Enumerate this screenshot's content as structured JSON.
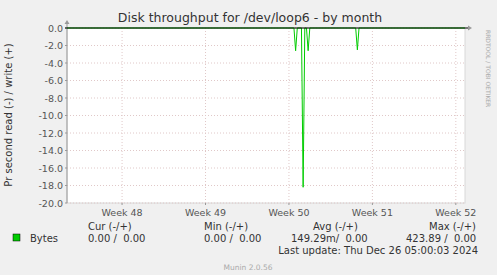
{
  "chart_data": {
    "type": "line",
    "title": "Disk throughput for /dev/loop6 - by month",
    "y_label": "Pr second read (-) / write (+)",
    "x": [
      47.34,
      50.06,
      50.08,
      50.1,
      50.15,
      50.17,
      50.19,
      50.21,
      50.23,
      50.25,
      50.8,
      50.82,
      50.84,
      52.11
    ],
    "series": [
      {
        "name": "Bytes",
        "color": "#00cc00",
        "values": [
          0,
          0,
          -2.6,
          0,
          0,
          -18.2,
          0,
          0,
          -2.6,
          0,
          0,
          -2.5,
          0,
          0
        ]
      }
    ],
    "xlim": [
      47.34,
      52.11
    ],
    "xticks": [
      {
        "value": 48,
        "label": "Week 48"
      },
      {
        "value": 49,
        "label": "Week 49"
      },
      {
        "value": 50,
        "label": "Week 50"
      },
      {
        "value": 51,
        "label": "Week 51"
      },
      {
        "value": 52,
        "label": "Week 52"
      }
    ],
    "ylim": [
      -20,
      0
    ],
    "yticks": [
      {
        "value": 0,
        "label": "0.0"
      },
      {
        "value": -2,
        "label": "-2.0"
      },
      {
        "value": -4,
        "label": "-4.0"
      },
      {
        "value": -6,
        "label": "-6.0"
      },
      {
        "value": -8,
        "label": "-8.0"
      },
      {
        "value": -10,
        "label": "-10.0"
      },
      {
        "value": -12,
        "label": "-12.0"
      },
      {
        "value": -14,
        "label": "-14.0"
      },
      {
        "value": -16,
        "label": "-16.0"
      },
      {
        "value": -18,
        "label": "-18.0"
      },
      {
        "value": -20,
        "label": "-20.0"
      }
    ],
    "grid": true,
    "stats": {
      "headers": [
        "Cur (-/+)",
        "Min (-/+)",
        "Avg (-/+)",
        "Max (-/+)"
      ],
      "values": [
        "0.00 /  0.00",
        "0.00 /  0.00",
        "149.29m/  0.00",
        "423.89 /  0.00"
      ]
    },
    "footer": "Last update: Thu Dec 26 05:00:03 2024",
    "credit": "Munin 2.0.56",
    "watermark": "RRDTOOL / TOBI OETIKER"
  }
}
